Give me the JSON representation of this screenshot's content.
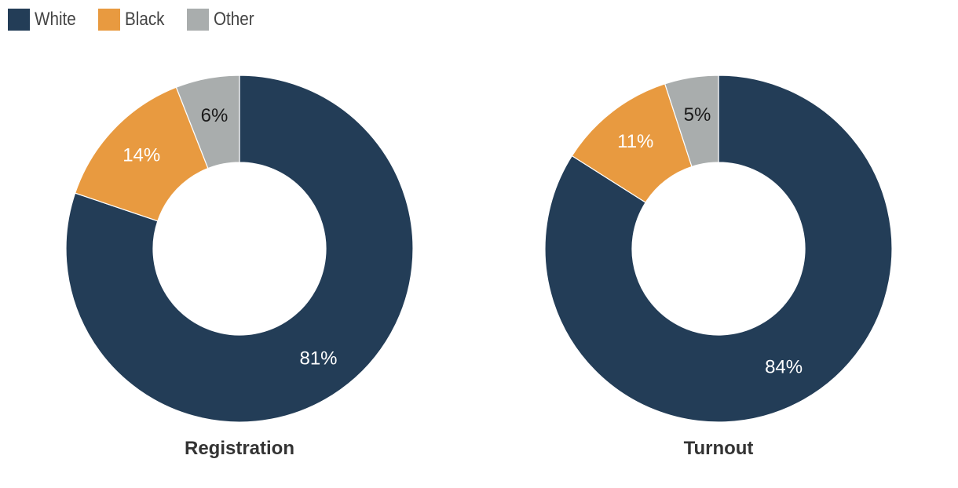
{
  "legend": {
    "items": [
      {
        "label": "White",
        "color": "#233d57"
      },
      {
        "label": "Black",
        "color": "#e89a40"
      },
      {
        "label": "Other",
        "color": "#a9adad"
      }
    ]
  },
  "chart_data": [
    {
      "type": "pie",
      "variant": "donut",
      "title": "Registration",
      "categories": [
        "White",
        "Black",
        "Other"
      ],
      "values": [
        81,
        14,
        6
      ],
      "labels": [
        "81%",
        "14%",
        "6%"
      ],
      "unit": "%"
    },
    {
      "type": "pie",
      "variant": "donut",
      "title": "Turnout",
      "categories": [
        "White",
        "Black",
        "Other"
      ],
      "values": [
        84,
        11,
        5
      ],
      "labels": [
        "84%",
        "11%",
        "5%"
      ],
      "unit": "%"
    }
  ]
}
